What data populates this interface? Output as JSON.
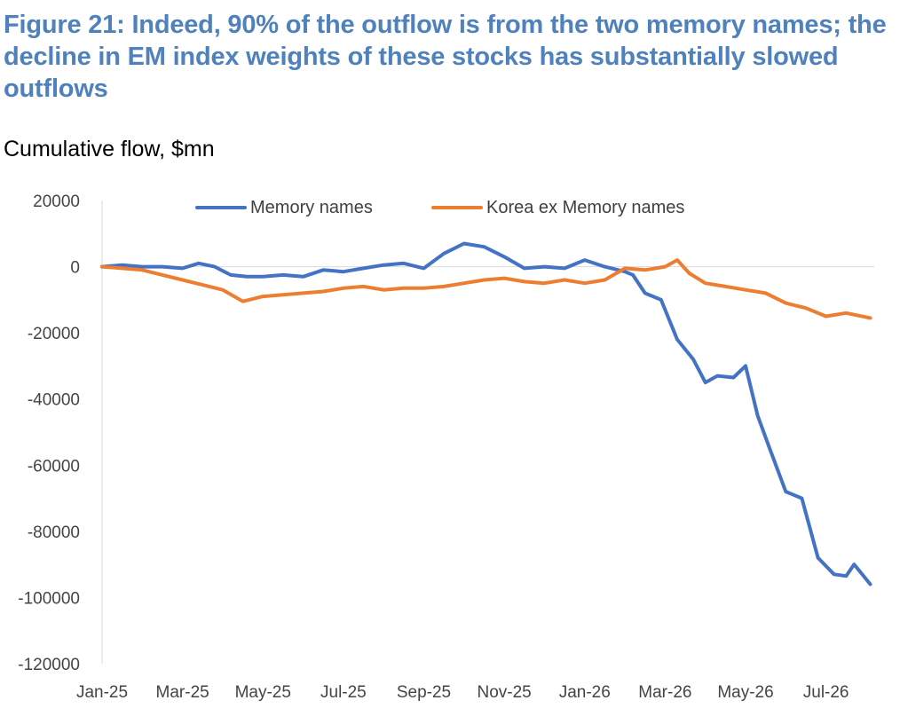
{
  "figure": {
    "title": "Figure 21: Indeed, 90% of the outflow is from the two memory names; the decline in EM index weights of these stocks has substantially slowed outflows",
    "subtitle": "Cumulative flow, $mn"
  },
  "chart_data": {
    "type": "line",
    "ylim": [
      -120000,
      20000
    ],
    "yticks": [
      20000,
      0,
      -20000,
      -40000,
      -60000,
      -80000,
      -100000,
      -120000
    ],
    "xticks": [
      "Jan-25",
      "Mar-25",
      "May-25",
      "Jul-25",
      "Sep-25",
      "Nov-25",
      "Jan-26",
      "Mar-26",
      "May-26",
      "Jul-26"
    ],
    "x_unit": "months since Jan-25",
    "xlim": [
      0,
      19.2
    ],
    "grid": false,
    "legend_position": "top",
    "series": [
      {
        "name": "Memory names",
        "color": "#4472c4",
        "x": [
          0,
          0.5,
          1.0,
          1.5,
          2.0,
          2.4,
          2.8,
          3.2,
          3.6,
          4.0,
          4.5,
          5.0,
          5.5,
          6.0,
          6.5,
          7.0,
          7.5,
          8.0,
          8.5,
          9.0,
          9.5,
          10.0,
          10.5,
          11.0,
          11.5,
          12.0,
          12.5,
          13.0,
          13.2,
          13.5,
          13.9,
          14.3,
          14.7,
          15.0,
          15.3,
          15.7,
          16.0,
          16.3,
          16.6,
          17.0,
          17.4,
          17.8,
          18.2,
          18.5,
          18.7,
          18.9,
          19.1
        ],
        "y": [
          0,
          500,
          0,
          0,
          -500,
          1000,
          0,
          -2500,
          -3000,
          -3000,
          -2500,
          -3000,
          -1000,
          -1500,
          -500,
          500,
          1000,
          -500,
          4000,
          7000,
          6000,
          3000,
          -500,
          0,
          -500,
          2000,
          0,
          -1500,
          -2500,
          -8000,
          -10000,
          -22000,
          -28000,
          -35000,
          -33000,
          -33500,
          -30000,
          -45000,
          -55000,
          -68000,
          -70000,
          -88000,
          -93000,
          -93500,
          -90000,
          -93000,
          -96000
        ]
      },
      {
        "name": "Korea ex Memory names",
        "color": "#ed7d31",
        "x": [
          0,
          0.5,
          1.0,
          1.5,
          2.0,
          2.5,
          3.0,
          3.5,
          4.0,
          4.5,
          5.0,
          5.5,
          6.0,
          6.5,
          7.0,
          7.5,
          8.0,
          8.5,
          9.0,
          9.5,
          10.0,
          10.5,
          11.0,
          11.5,
          12.0,
          12.5,
          13.0,
          13.5,
          14.0,
          14.3,
          14.6,
          15.0,
          15.5,
          16.0,
          16.5,
          17.0,
          17.5,
          18.0,
          18.5,
          19.1
        ],
        "y": [
          0,
          -500,
          -1000,
          -2500,
          -4000,
          -5500,
          -7000,
          -10500,
          -9000,
          -8500,
          -8000,
          -7500,
          -6500,
          -6000,
          -7000,
          -6500,
          -6500,
          -6000,
          -5000,
          -4000,
          -3500,
          -4500,
          -5000,
          -4000,
          -5000,
          -4000,
          -500,
          -1000,
          0,
          2000,
          -2000,
          -5000,
          -6000,
          -7000,
          -8000,
          -11000,
          -12500,
          -15000,
          -14000,
          -15500
        ]
      }
    ]
  }
}
